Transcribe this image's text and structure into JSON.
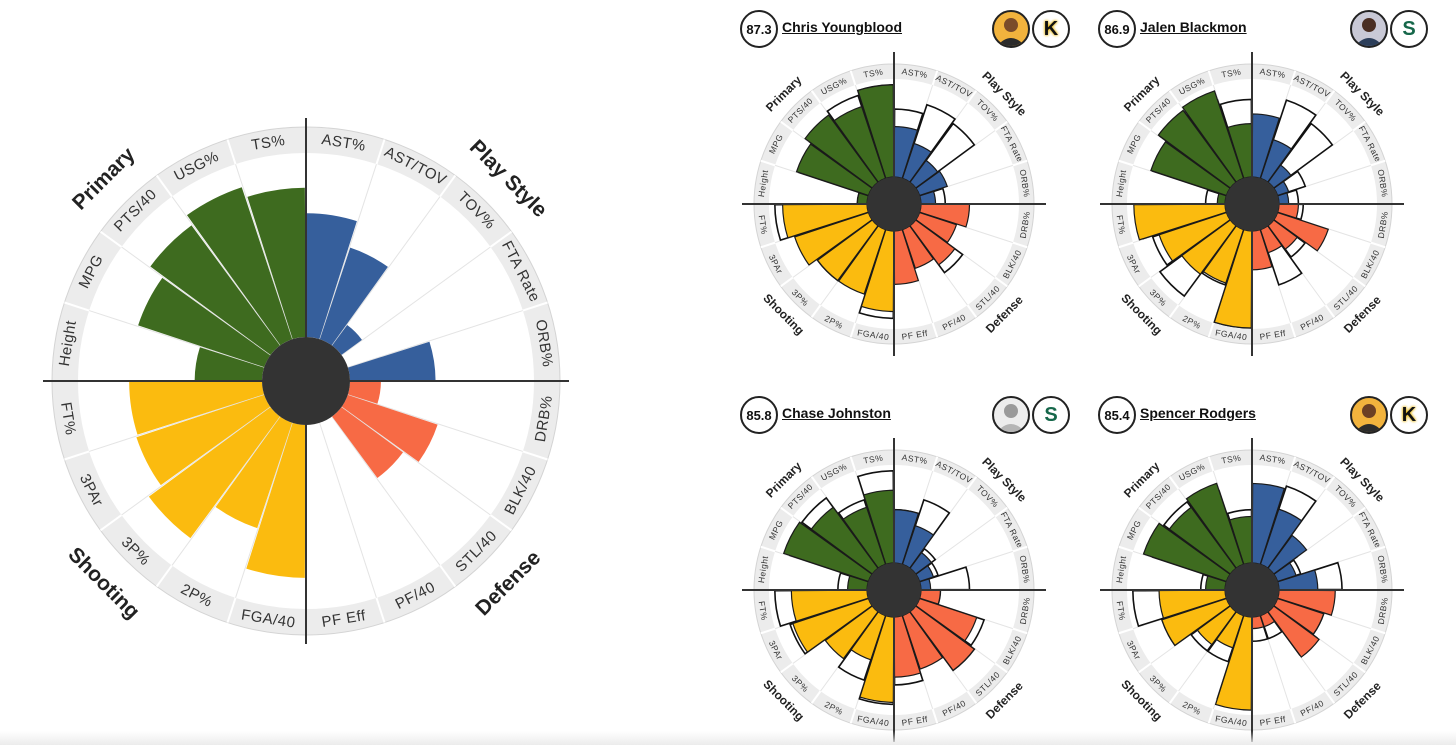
{
  "colors": {
    "primary": "#3e6b1f",
    "play_style": "#365f9c",
    "defense": "#f76a45",
    "shooting": "#fbbb0f",
    "ring": "#ececec",
    "center": "#333333"
  },
  "chart_data": [
    {
      "type": "polar-bar",
      "categories": [
        "TS%",
        "USG%",
        "PTS/40",
        "MPG",
        "Height",
        "FT%",
        "3PAr",
        "3P%",
        "2P%",
        "FGA/40",
        "PF Eff",
        "PF/40",
        "STL/40",
        "BLK/40",
        "DRB%",
        "ORB%",
        "FTA Rate",
        "TOV%",
        "AST/TOV",
        "AST%"
      ],
      "groups": [
        {
          "name": "Primary",
          "categories": [
            "TS%",
            "USG%",
            "PTS/40",
            "MPG",
            "Height"
          ]
        },
        {
          "name": "Shooting",
          "categories": [
            "FT%",
            "3PAr",
            "3P%",
            "2P%",
            "FGA/40"
          ]
        },
        {
          "name": "Defense",
          "categories": [
            "PF Eff",
            "PF/40",
            "STL/40",
            "BLK/40",
            "DRB%"
          ]
        },
        {
          "name": "Play Style",
          "categories": [
            "ORB%",
            "FTA Rate",
            "TOV%",
            "AST/TOV",
            "AST%"
          ]
        }
      ],
      "values": [
        82,
        88,
        82,
        73,
        37,
        73,
        74,
        83,
        61,
        84,
        0,
        0,
        42,
        52,
        17,
        47,
        0,
        14,
        53,
        68
      ],
      "rmax": 100
    },
    {
      "type": "polar-bar",
      "player": "Chris Youngblood",
      "score": "87.3",
      "categories": [
        "TS%",
        "USG%",
        "PTS/40",
        "MPG",
        "Height",
        "FT%",
        "3PAr",
        "3P%",
        "2P%",
        "FGA/40",
        "PF Eff",
        "PF/40",
        "STL/40",
        "BLK/40",
        "DRB%",
        "ORB%",
        "FTA Rate",
        "TOV%",
        "AST/TOV",
        "AST%"
      ],
      "values": [
        95,
        78,
        86,
        78,
        10,
        87,
        80,
        70,
        70,
        83,
        55,
        42,
        50,
        40,
        50,
        15,
        30,
        28,
        38,
        52
      ],
      "comparison": [
        95,
        90,
        80,
        75,
        10,
        95,
        55,
        70,
        60,
        90,
        40,
        40,
        60,
        35,
        30,
        25,
        20,
        75,
        80,
        70
      ],
      "rmax": 100
    },
    {
      "type": "polar-bar",
      "player": "Jalen Blackmon",
      "score": "86.9",
      "categories": [
        "TS%",
        "USG%",
        "PTS/40",
        "MPG",
        "Height",
        "FT%",
        "3PAr",
        "3P%",
        "2P%",
        "FGA/40",
        "PF Eff",
        "PF/40",
        "STL/40",
        "BLK/40",
        "DRB%",
        "ORB%",
        "FTA Rate",
        "TOV%",
        "AST/TOV",
        "AST%"
      ],
      "values": [
        55,
        95,
        92,
        82,
        8,
        94,
        73,
        62,
        58,
        100,
        40,
        25,
        30,
        55,
        20,
        10,
        12,
        22,
        42,
        65
      ],
      "comparison": [
        80,
        85,
        90,
        80,
        20,
        90,
        80,
        90,
        60,
        100,
        20,
        60,
        40,
        20,
        25,
        20,
        30,
        75,
        85,
        55
      ],
      "rmax": 100
    },
    {
      "type": "polar-bar",
      "player": "Chase Johnston",
      "score": "85.8",
      "categories": [
        "TS%",
        "USG%",
        "PTS/40",
        "MPG",
        "Height",
        "FT%",
        "3PAr",
        "3P%",
        "2P%",
        "FGA/40",
        "PF Eff",
        "PF/40",
        "STL/40",
        "BLK/40",
        "DRB%",
        "ORB%",
        "FTA Rate",
        "TOV%",
        "AST/TOV",
        "AST%"
      ],
      "values": [
        75,
        62,
        78,
        92,
        20,
        78,
        82,
        60,
        48,
        88,
        62,
        58,
        75,
        62,
        20,
        10,
        15,
        20,
        42,
        55
      ],
      "comparison": [
        95,
        70,
        90,
        85,
        30,
        95,
        85,
        55,
        70,
        90,
        70,
        55,
        75,
        70,
        20,
        50,
        20,
        25,
        70,
        55
      ],
      "rmax": 100
    },
    {
      "type": "polar-bar",
      "player": "Spencer Rodgers",
      "score": "85.4",
      "categories": [
        "TS%",
        "USG%",
        "PTS/40",
        "MPG",
        "Height",
        "FT%",
        "3PAr",
        "3P%",
        "2P%",
        "FGA/40",
        "PF Eff",
        "PF/40",
        "STL/40",
        "BLK/40",
        "DRB%",
        "ORB%",
        "FTA Rate",
        "TOV%",
        "AST/TOV",
        "AST%"
      ],
      "values": [
        48,
        88,
        78,
        90,
        20,
        68,
        70,
        42,
        35,
        96,
        12,
        12,
        58,
        50,
        58,
        40,
        20,
        42,
        60,
        82
      ],
      "comparison": [
        55,
        80,
        85,
        80,
        25,
        95,
        70,
        50,
        50,
        90,
        25,
        25,
        55,
        50,
        25,
        65,
        25,
        30,
        85,
        65
      ],
      "rmax": 100
    }
  ],
  "players": [
    {
      "name": "Chris Youngblood",
      "score": "87.3",
      "team_icon": "kennesaw-state-logo-icon",
      "team_color": "#e5b50f",
      "team_mark": "K"
    },
    {
      "name": "Jalen Blackmon",
      "score": "86.9",
      "team_icon": "stetson-logo-icon",
      "team_color": "#16674a",
      "team_mark": "S"
    },
    {
      "name": "Chase Johnston",
      "score": "85.8",
      "team_icon": "stetson-logo-icon",
      "team_color": "#16674a",
      "team_mark": "S"
    },
    {
      "name": "Spencer Rodgers",
      "score": "85.4",
      "team_icon": "kennesaw-state-logo-icon",
      "team_color": "#e5b50f",
      "team_mark": "K"
    }
  ]
}
